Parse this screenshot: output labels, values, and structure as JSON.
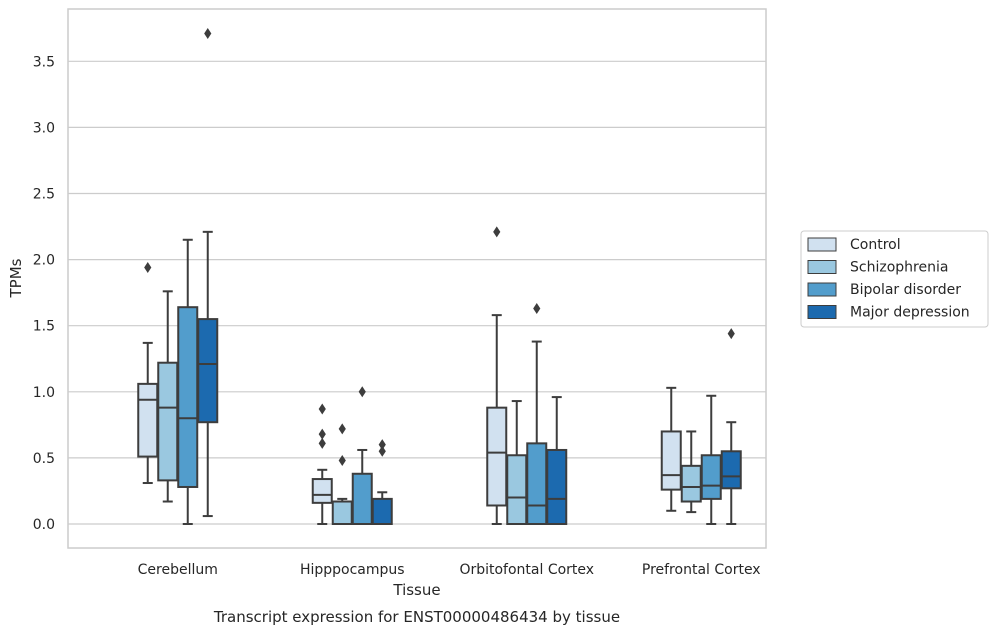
{
  "chart_data": {
    "type": "boxplot",
    "title": "",
    "caption": "Transcript expression for ENST00000486434 by tissue",
    "xlabel": "Tissue",
    "ylabel": "TPMs",
    "ylim": [
      -0.18,
      3.89
    ],
    "yticks": [
      "0.0",
      "0.5",
      "1.0",
      "1.5",
      "2.0",
      "2.5",
      "3.0",
      "3.5"
    ],
    "grid": "horizontal",
    "legend_position": "right",
    "categories": [
      "Cerebellum",
      "Hipppocampus",
      "Orbitofontal Cortex",
      "Prefrontal Cortex"
    ],
    "series": [
      {
        "name": "Control",
        "color": "#d1e1f0",
        "boxes": [
          {
            "whisker_low": 0.31,
            "q1": 0.51,
            "median": 0.94,
            "q3": 1.06,
            "whisker_high": 1.37,
            "outliers": [
              1.94
            ]
          },
          {
            "whisker_low": 0.0,
            "q1": 0.16,
            "median": 0.22,
            "q3": 0.34,
            "whisker_high": 0.41,
            "outliers": [
              0.61,
              0.68,
              0.87
            ]
          },
          {
            "whisker_low": 0.0,
            "q1": 0.14,
            "median": 0.54,
            "q3": 0.88,
            "whisker_high": 1.58,
            "outliers": [
              2.21
            ]
          },
          {
            "whisker_low": 0.1,
            "q1": 0.26,
            "median": 0.37,
            "q3": 0.7,
            "whisker_high": 1.03,
            "outliers": []
          }
        ]
      },
      {
        "name": "Schizophrenia",
        "color": "#9ac8e0",
        "boxes": [
          {
            "whisker_low": 0.17,
            "q1": 0.33,
            "median": 0.88,
            "q3": 1.22,
            "whisker_high": 1.76,
            "outliers": []
          },
          {
            "whisker_low": 0.0,
            "q1": 0.0,
            "median": 0.17,
            "q3": 0.17,
            "whisker_high": 0.19,
            "outliers": [
              0.48,
              0.72
            ]
          },
          {
            "whisker_low": 0.0,
            "q1": 0.0,
            "median": 0.2,
            "q3": 0.52,
            "whisker_high": 0.93,
            "outliers": []
          },
          {
            "whisker_low": 0.09,
            "q1": 0.17,
            "median": 0.28,
            "q3": 0.44,
            "whisker_high": 0.7,
            "outliers": []
          }
        ]
      },
      {
        "name": "Bipolar disorder",
        "color": "#529dcc",
        "boxes": [
          {
            "whisker_low": 0.0,
            "q1": 0.28,
            "median": 0.8,
            "q3": 1.64,
            "whisker_high": 2.15,
            "outliers": []
          },
          {
            "whisker_low": 0.0,
            "q1": 0.0,
            "median": 0.0,
            "q3": 0.38,
            "whisker_high": 0.56,
            "outliers": [
              1.0
            ]
          },
          {
            "whisker_low": 0.0,
            "q1": 0.0,
            "median": 0.14,
            "q3": 0.61,
            "whisker_high": 1.38,
            "outliers": [
              1.63
            ]
          },
          {
            "whisker_low": 0.0,
            "q1": 0.19,
            "median": 0.29,
            "q3": 0.52,
            "whisker_high": 0.97,
            "outliers": []
          }
        ]
      },
      {
        "name": "Major depression",
        "color": "#1c6aaf",
        "boxes": [
          {
            "whisker_low": 0.06,
            "q1": 0.77,
            "median": 1.21,
            "q3": 1.55,
            "whisker_high": 2.21,
            "outliers": [
              3.71
            ]
          },
          {
            "whisker_low": 0.0,
            "q1": 0.0,
            "median": 0.0,
            "q3": 0.19,
            "whisker_high": 0.24,
            "outliers": [
              0.55,
              0.6
            ]
          },
          {
            "whisker_low": 0.0,
            "q1": 0.0,
            "median": 0.19,
            "q3": 0.56,
            "whisker_high": 0.96,
            "outliers": []
          },
          {
            "whisker_low": 0.0,
            "q1": 0.27,
            "median": 0.36,
            "q3": 0.55,
            "whisker_high": 0.77,
            "outliers": [
              1.44
            ]
          }
        ]
      }
    ]
  }
}
